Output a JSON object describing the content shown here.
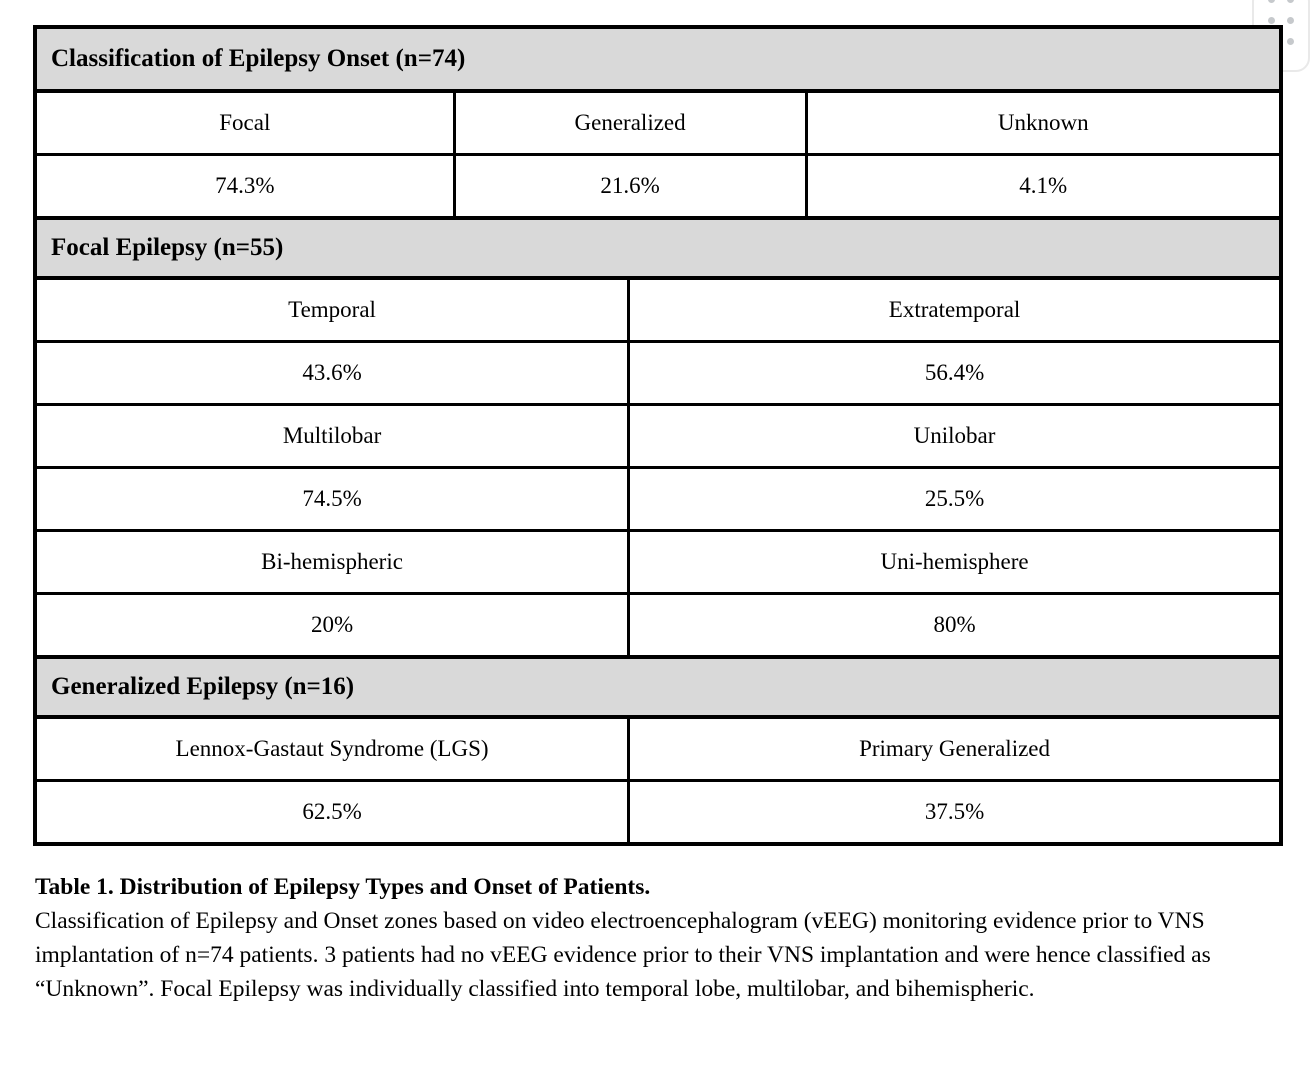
{
  "table": {
    "sections": [
      {
        "header": "Classification of Epilepsy Onset (n=74)",
        "columns": 3,
        "rows": [
          [
            "Focal",
            "Generalized",
            "Unknown"
          ],
          [
            "74.3%",
            "21.6%",
            "4.1%"
          ]
        ]
      },
      {
        "header": "Focal Epilepsy (n=55)",
        "columns": 2,
        "rows": [
          [
            "Temporal",
            "Extratemporal"
          ],
          [
            "43.6%",
            "56.4%"
          ],
          [
            "Multilobar",
            "Unilobar"
          ],
          [
            "74.5%",
            "25.5%"
          ],
          [
            "Bi-hemispheric",
            "Uni-hemisphere"
          ],
          [
            "20%",
            "80%"
          ]
        ]
      },
      {
        "header": "Generalized Epilepsy (n=16)",
        "columns": 2,
        "rows": [
          [
            "Lennox-Gastaut Syndrome (LGS)",
            "Primary Generalized"
          ],
          [
            "62.5%",
            "37.5%"
          ]
        ]
      }
    ]
  },
  "caption": {
    "title": "Table 1. Distribution of Epilepsy Types and Onset of Patients.",
    "body": "Classification of Epilepsy and Onset zones based on video electroencephalogram (vEEG) monitoring evidence prior to VNS implantation of n=74 patients. 3 patients had no vEEG evidence prior to their VNS implantation and were hence classified as “Unknown”. Focal Epilepsy was individually classified into temporal lobe, multilobar, and bihemispheric."
  },
  "icons": {
    "drag_handle": "six-dots-grid"
  },
  "colors": {
    "section_header_bg": "#d9d9d9",
    "table_border": "#000000",
    "handle_dot": "#c6c9cc",
    "handle_border": "#e9e9e9",
    "page_bg": "#ffffff"
  }
}
